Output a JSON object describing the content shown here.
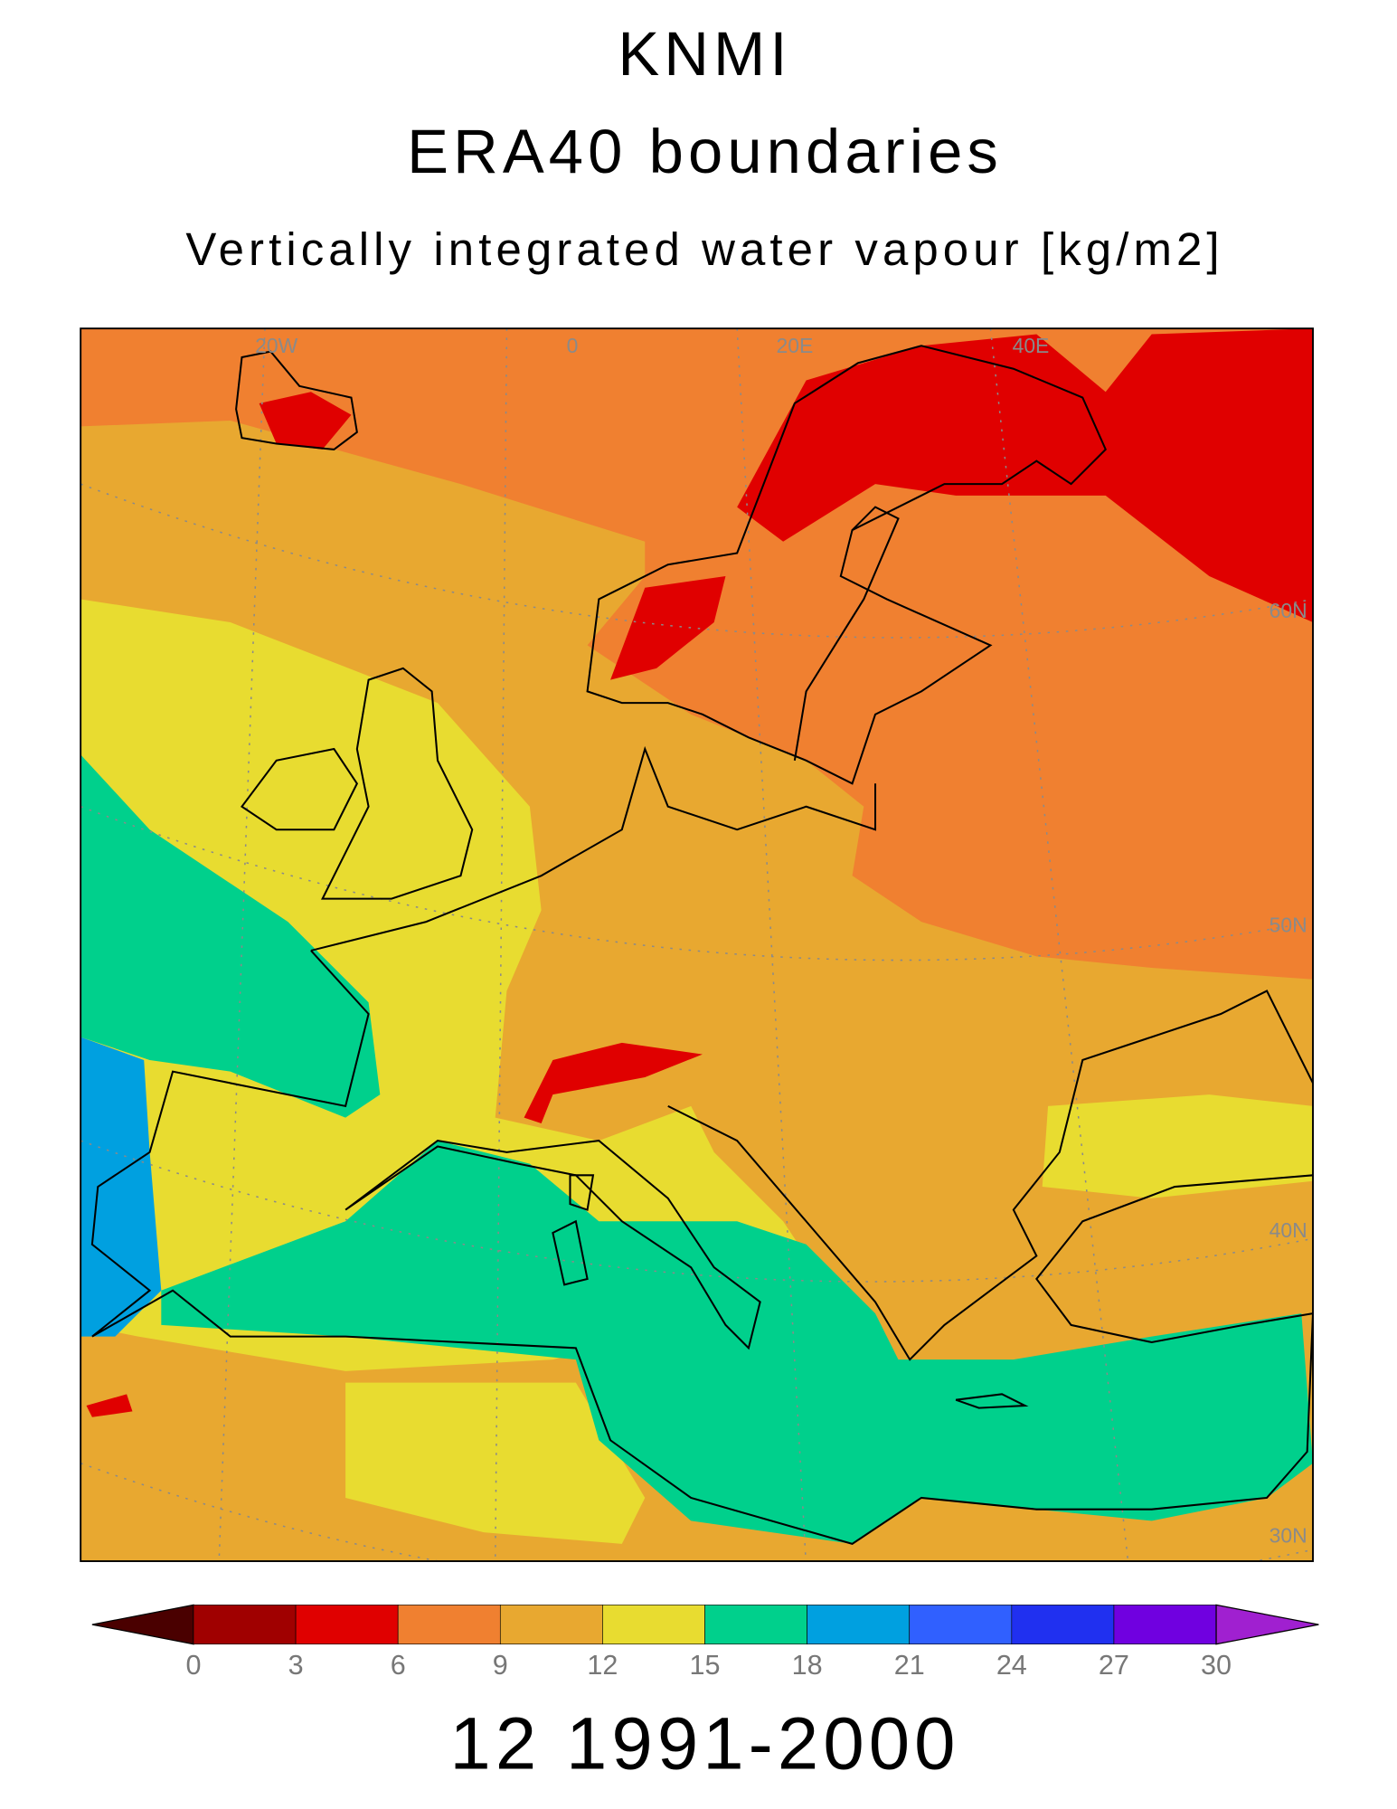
{
  "chart_data": {
    "type": "map",
    "titles": [
      "KNMI",
      "ERA40 boundaries",
      "Vertically integrated water vapour [kg/m2]"
    ],
    "footer": "12 1991-2000",
    "map_labels": {
      "longitudes": [
        "20W",
        "0",
        "20E",
        "40E"
      ],
      "latitudes": [
        "60N",
        "50N",
        "40N",
        "30N"
      ]
    },
    "colorbar": {
      "ticks": [
        0,
        3,
        6,
        9,
        12,
        15,
        18,
        21,
        24,
        27,
        30
      ],
      "colors": [
        "#4a0000",
        "#a00000",
        "#e00000",
        "#f08030",
        "#e8a830",
        "#e8dc30",
        "#00d08c",
        "#00a0e0",
        "#3060ff",
        "#2030f0",
        "#7000e0",
        "#a020d0"
      ]
    }
  }
}
